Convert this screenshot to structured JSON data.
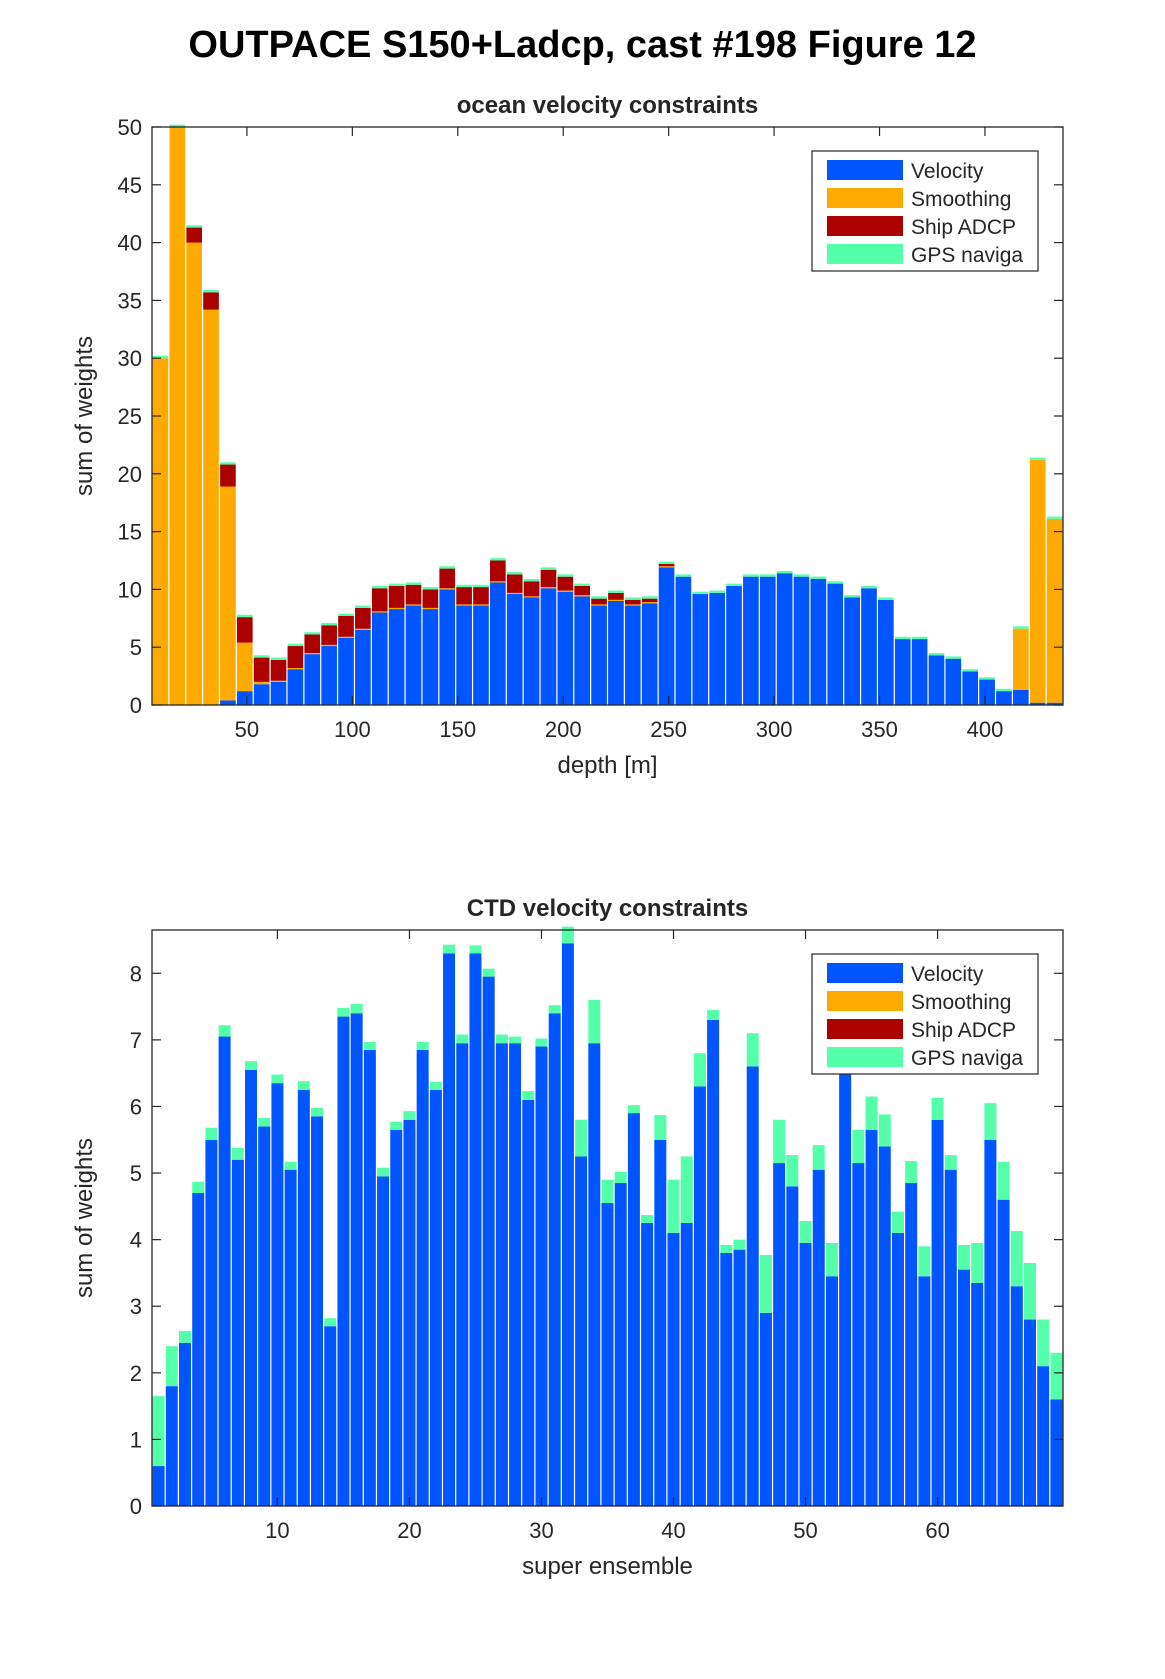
{
  "figure": {
    "title": "OUTPACE S150+Ladcp, cast #198  Figure 12"
  },
  "colors": {
    "Velocity": "#0055ff",
    "Smoothing": "#ffaa00",
    "Ship ADCP": "#aa0000",
    "GPS naviga": "#55ffaa"
  },
  "chart_data": [
    {
      "type": "bar",
      "stacked": true,
      "title": "ocean velocity constraints",
      "xlabel": "depth [m]",
      "ylabel": "sum of weights",
      "xlim": [
        5,
        437
      ],
      "ylim": [
        0,
        50
      ],
      "xticks": [
        50,
        100,
        150,
        200,
        250,
        300,
        350,
        400
      ],
      "yticks": [
        0,
        5,
        10,
        15,
        20,
        25,
        30,
        35,
        40,
        45,
        50
      ],
      "bar_width": 8,
      "legend": {
        "position": "top-right",
        "entries": [
          "Velocity",
          "Smoothing",
          "Ship ADCP",
          "GPS naviga"
        ]
      },
      "x": [
        9,
        17,
        25,
        33,
        41,
        49,
        57,
        65,
        73,
        81,
        89,
        97,
        105,
        113,
        121,
        129,
        137,
        145,
        153,
        161,
        169,
        177,
        185,
        193,
        201,
        209,
        217,
        225,
        233,
        241,
        249,
        257,
        265,
        273,
        281,
        289,
        297,
        305,
        313,
        321,
        329,
        337,
        345,
        353,
        361,
        369,
        377,
        385,
        393,
        401,
        409,
        417,
        425,
        433
      ],
      "series": [
        {
          "name": "Velocity",
          "values": [
            0,
            0,
            0,
            0,
            0.4,
            1.2,
            1.8,
            2.0,
            3.1,
            4.4,
            5.1,
            5.8,
            6.5,
            8.0,
            8.3,
            8.6,
            8.3,
            10.0,
            8.6,
            8.6,
            10.6,
            9.6,
            9.3,
            10.1,
            9.8,
            9.4,
            8.6,
            9.0,
            8.6,
            8.8,
            11.9,
            11.1,
            9.6,
            9.7,
            10.3,
            11.1,
            11.1,
            11.4,
            11.1,
            10.9,
            10.5,
            9.3,
            10.1,
            9.1,
            5.7,
            5.7,
            4.3,
            4.0,
            2.9,
            2.2,
            1.2,
            1.3,
            0.2,
            0.2
          ]
        },
        {
          "name": "Smoothing",
          "values": [
            30.0,
            50.0,
            40.0,
            34.2,
            18.5,
            4.2,
            0.2,
            0.1,
            0.1,
            0.1,
            0.1,
            0.1,
            0.1,
            0.1,
            0.1,
            0.1,
            0.1,
            0.1,
            0.1,
            0.1,
            0.1,
            0.1,
            0.1,
            0.1,
            0.1,
            0.1,
            0.1,
            0.1,
            0.1,
            0.1,
            0.1,
            0,
            0,
            0,
            0,
            0,
            0,
            0,
            0,
            0,
            0,
            0,
            0,
            0,
            0,
            0,
            0,
            0,
            0,
            0,
            0,
            5.3,
            21.0,
            15.9
          ]
        },
        {
          "name": "Ship ADCP",
          "values": [
            0,
            0,
            1.3,
            1.5,
            1.9,
            2.2,
            2.1,
            1.8,
            1.9,
            1.6,
            1.7,
            1.8,
            1.8,
            2.0,
            1.9,
            1.7,
            1.6,
            1.7,
            1.5,
            1.5,
            1.8,
            1.6,
            1.3,
            1.5,
            1.2,
            0.8,
            0.5,
            0.6,
            0.4,
            0.3,
            0.2,
            0,
            0,
            0,
            0,
            0,
            0,
            0,
            0,
            0,
            0,
            0,
            0,
            0,
            0,
            0,
            0,
            0,
            0,
            0,
            0,
            0,
            0,
            0
          ]
        },
        {
          "name": "GPS naviga",
          "values": [
            0.2,
            0.2,
            0.2,
            0.2,
            0.2,
            0.2,
            0.2,
            0.2,
            0.2,
            0.2,
            0.2,
            0.2,
            0.2,
            0.2,
            0.2,
            0.2,
            0.2,
            0.2,
            0.2,
            0.2,
            0.2,
            0.2,
            0.2,
            0.2,
            0.2,
            0.2,
            0.2,
            0.2,
            0.2,
            0.2,
            0.2,
            0.2,
            0.2,
            0.2,
            0.2,
            0.2,
            0.2,
            0.2,
            0.2,
            0.2,
            0.2,
            0.2,
            0.2,
            0.2,
            0.2,
            0.2,
            0.2,
            0.2,
            0.2,
            0.2,
            0.2,
            0.2,
            0.2,
            0.2
          ]
        }
      ]
    },
    {
      "type": "bar",
      "stacked": true,
      "title": "CTD velocity constraints",
      "xlabel": "super ensemble",
      "ylabel": "sum of weights",
      "xlim": [
        0.5,
        69.5
      ],
      "ylim": [
        0,
        8.65
      ],
      "xticks": [
        10,
        20,
        30,
        40,
        50,
        60
      ],
      "yticks": [
        0,
        1,
        2,
        3,
        4,
        5,
        6,
        7,
        8
      ],
      "bar_width": 1,
      "legend": {
        "position": "top-right",
        "entries": [
          "Velocity",
          "Smoothing",
          "Ship ADCP",
          "GPS naviga"
        ]
      },
      "x": [
        1,
        2,
        3,
        4,
        5,
        6,
        7,
        8,
        9,
        10,
        11,
        12,
        13,
        14,
        15,
        16,
        17,
        18,
        19,
        20,
        21,
        22,
        23,
        24,
        25,
        26,
        27,
        28,
        29,
        30,
        31,
        32,
        33,
        34,
        35,
        36,
        37,
        38,
        39,
        40,
        41,
        42,
        43,
        44,
        45,
        46,
        47,
        48,
        49,
        50,
        51,
        52,
        53,
        54,
        55,
        56,
        57,
        58,
        59,
        60,
        61,
        62,
        63,
        64,
        65,
        66,
        67,
        68,
        69
      ],
      "series": [
        {
          "name": "Velocity",
          "values": [
            0.6,
            1.8,
            2.45,
            4.7,
            5.5,
            7.05,
            5.2,
            6.55,
            5.7,
            6.35,
            5.05,
            6.25,
            5.85,
            2.7,
            7.35,
            7.4,
            6.85,
            4.95,
            5.65,
            5.8,
            6.85,
            6.25,
            8.3,
            6.95,
            8.3,
            7.95,
            6.95,
            6.95,
            6.1,
            6.9,
            7.4,
            8.45,
            5.25,
            6.95,
            4.55,
            4.85,
            5.9,
            4.25,
            5.5,
            4.1,
            4.25,
            6.3,
            7.3,
            3.8,
            3.85,
            6.6,
            2.9,
            5.15,
            4.8,
            3.95,
            5.05,
            3.45,
            6.95,
            5.15,
            5.65,
            5.4,
            4.1,
            4.85,
            3.45,
            5.8,
            5.05,
            3.55,
            3.35,
            5.5,
            4.6,
            3.3,
            2.8,
            2.1,
            1.6
          ]
        },
        {
          "name": "Smoothing",
          "values": [
            0,
            0,
            0,
            0,
            0,
            0,
            0,
            0,
            0,
            0,
            0,
            0,
            0,
            0,
            0,
            0,
            0,
            0,
            0,
            0,
            0,
            0,
            0,
            0,
            0,
            0,
            0,
            0,
            0,
            0,
            0,
            0,
            0,
            0,
            0,
            0,
            0,
            0,
            0,
            0,
            0,
            0,
            0,
            0,
            0,
            0,
            0,
            0,
            0,
            0,
            0,
            0,
            0,
            0,
            0,
            0,
            0,
            0,
            0,
            0,
            0,
            0,
            0,
            0,
            0,
            0,
            0,
            0,
            0
          ]
        },
        {
          "name": "Ship ADCP",
          "values": [
            0,
            0,
            0,
            0,
            0,
            0,
            0,
            0,
            0,
            0,
            0,
            0,
            0,
            0,
            0,
            0,
            0,
            0,
            0,
            0,
            0,
            0,
            0,
            0,
            0,
            0,
            0,
            0,
            0,
            0,
            0,
            0,
            0,
            0,
            0,
            0,
            0,
            0,
            0,
            0,
            0,
            0,
            0,
            0,
            0,
            0,
            0,
            0,
            0,
            0,
            0,
            0,
            0,
            0,
            0,
            0,
            0,
            0,
            0,
            0,
            0,
            0,
            0,
            0,
            0,
            0,
            0,
            0,
            0
          ]
        },
        {
          "name": "GPS naviga",
          "values": [
            1.05,
            0.6,
            0.18,
            0.17,
            0.18,
            0.17,
            0.18,
            0.13,
            0.13,
            0.13,
            0.12,
            0.13,
            0.13,
            0.12,
            0.13,
            0.14,
            0.12,
            0.13,
            0.12,
            0.13,
            0.12,
            0.12,
            0.13,
            0.13,
            0.12,
            0.12,
            0.13,
            0.1,
            0.13,
            0.12,
            0.12,
            0.25,
            0.55,
            0.65,
            0.35,
            0.17,
            0.12,
            0.12,
            0.37,
            0.8,
            1.0,
            0.5,
            0.15,
            0.12,
            0.15,
            0.5,
            0.87,
            0.65,
            0.47,
            0.33,
            0.37,
            0.5,
            0.1,
            0.5,
            0.5,
            0.48,
            0.32,
            0.33,
            0.45,
            0.33,
            0.22,
            0.37,
            0.6,
            0.55,
            0.57,
            0.83,
            0.85,
            0.7,
            0.7
          ]
        }
      ]
    }
  ]
}
